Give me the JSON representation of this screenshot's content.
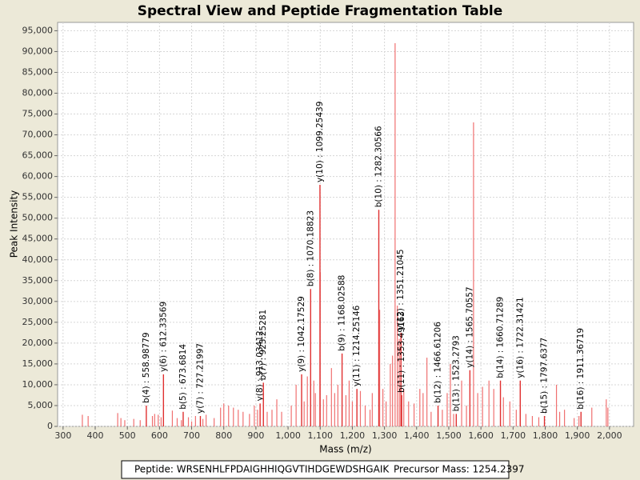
{
  "chart_data": {
    "type": "spectrum",
    "title": "Spectral View and Peptide Fragmentation Table",
    "x_label": "Mass (m/z)",
    "y_label": "Peak Intensity",
    "xlim": [
      283,
      2075
    ],
    "ylim": [
      0,
      97000
    ],
    "xticks": [
      300,
      400,
      500,
      600,
      700,
      800,
      900,
      {
        "value": 1000,
        "label": "1,000"
      },
      {
        "value": 1100,
        "label": "1,100"
      },
      {
        "value": 1200,
        "label": "1,200"
      },
      {
        "value": 1300,
        "label": "1,300"
      },
      {
        "value": 1400,
        "label": "1,400"
      },
      {
        "value": 1500,
        "label": "1,500"
      },
      {
        "value": 1600,
        "label": "1,600"
      },
      {
        "value": 1700,
        "label": "1,700"
      },
      {
        "value": 1800,
        "label": "1,800"
      },
      {
        "value": 1900,
        "label": "1,900"
      },
      {
        "value": 2000,
        "label": "2,000"
      }
    ],
    "yticks": [
      0,
      {
        "value": 5000,
        "label": "5,000"
      },
      {
        "value": 10000,
        "label": "10,000"
      },
      {
        "value": 15000,
        "label": "15,000"
      },
      {
        "value": 20000,
        "label": "20,000"
      },
      {
        "value": 25000,
        "label": "25,000"
      },
      {
        "value": 30000,
        "label": "30,000"
      },
      {
        "value": 35000,
        "label": "35,000"
      },
      {
        "value": 40000,
        "label": "40,000"
      },
      {
        "value": 45000,
        "label": "45,000"
      },
      {
        "value": 50000,
        "label": "50,000"
      },
      {
        "value": 55000,
        "label": "55,000"
      },
      {
        "value": 60000,
        "label": "60,000"
      },
      {
        "value": 65000,
        "label": "65,000"
      },
      {
        "value": 70000,
        "label": "70,000"
      },
      {
        "value": 75000,
        "label": "75,000"
      },
      {
        "value": 80000,
        "label": "80,000"
      },
      {
        "value": 85000,
        "label": "85,000"
      },
      {
        "value": 90000,
        "label": "90,000"
      },
      {
        "value": 95000,
        "label": "95,000"
      }
    ],
    "grid": true,
    "color": "#f07070",
    "annotation_color": "#e03030",
    "x": [
      360,
      378,
      470,
      480,
      492,
      520,
      540,
      578,
      585,
      596,
      605,
      640,
      655,
      668,
      690,
      700,
      712,
      735,
      745,
      770,
      790,
      800,
      815,
      830,
      845,
      860,
      880,
      895,
      905,
      935,
      950,
      965,
      980,
      1010,
      1025,
      1050,
      1060,
      1080,
      1085,
      1100,
      1110,
      1120,
      1135,
      1145,
      1155,
      1180,
      1190,
      1200,
      1225,
      1240,
      1255,
      1262,
      1285,
      1295,
      1305,
      1318,
      1325,
      1333,
      1340,
      1346,
      1360,
      1375,
      1392,
      1410,
      1420,
      1432,
      1445,
      1480,
      1495,
      1505,
      1515,
      1540,
      1555,
      1577,
      1590,
      1605,
      1625,
      1640,
      1670,
      1690,
      1710,
      1740,
      1760,
      1780,
      1835,
      1845,
      1860,
      1890,
      1905,
      1945,
      1990,
      1995
    ],
    "values": [
      2800,
      2500,
      3200,
      2000,
      1500,
      1800,
      1500,
      2500,
      3000,
      2800,
      2200,
      3800,
      2000,
      1500,
      2200,
      1200,
      2500,
      1800,
      2800,
      2000,
      4500,
      5500,
      5000,
      4500,
      4000,
      3500,
      3000,
      5000,
      4000,
      3500,
      4000,
      6500,
      3500,
      5000,
      10000,
      6000,
      12000,
      11000,
      8000,
      37000,
      6500,
      7500,
      14000,
      8000,
      10000,
      7500,
      11000,
      6000,
      8500,
      5000,
      4000,
      8000,
      28000,
      9000,
      6000,
      15000,
      17000,
      92000,
      29000,
      21000,
      9000,
      6000,
      5500,
      9000,
      8000,
      16500,
      3500,
      4000,
      8000,
      15000,
      3000,
      11000,
      5000,
      73000,
      8000,
      9500,
      11000,
      9000,
      7000,
      6000,
      4000,
      3000,
      2500,
      2200,
      10000,
      3500,
      4000,
      2000,
      2500,
      4500,
      6500,
      4500
    ],
    "annotations": [
      {
        "label": "b(4) : 558.98779",
        "x": 558.98779,
        "y": 5000
      },
      {
        "label": "y(6) : 612.33569",
        "x": 612.33569,
        "y": 12500
      },
      {
        "label": "b(5) : 673.6814",
        "x": 673.6814,
        "y": 3500
      },
      {
        "label": "y(7) : 727.21997",
        "x": 727.21997,
        "y": 2500
      },
      {
        "label": "y(8) : 913.03412",
        "x": 913.03412,
        "y": 5500
      },
      {
        "label": "b(7) : 923.25281",
        "x": 923.25281,
        "y": 10500
      },
      {
        "label": "y(9) : 1042.17529",
        "x": 1042.17529,
        "y": 12500
      },
      {
        "label": "b(8) : 1070.18823",
        "x": 1070.18823,
        "y": 33000
      },
      {
        "label": "y(10) : 1099.25439",
        "x": 1099.25439,
        "y": 58000
      },
      {
        "label": "b(9) : 1168.02588",
        "x": 1168.02588,
        "y": 17500
      },
      {
        "label": "y(11) : 1214.25146",
        "x": 1214.25146,
        "y": 9000
      },
      {
        "label": "b(10) : 1282.30566",
        "x": 1282.30566,
        "y": 52000
      },
      {
        "label": "y(12) : 1351.21045",
        "x": 1351.21045,
        "y": 22500
      },
      {
        "label": "b(11) : 1353.49163",
        "x": 1353.49163,
        "y": 7500
      },
      {
        "label": "b(12) : 1466.61206",
        "x": 1466.61206,
        "y": 5000
      },
      {
        "label": "b(13) : 1523.2793",
        "x": 1523.2793,
        "y": 3000
      },
      {
        "label": "y(14) : 1565.70557",
        "x": 1565.70557,
        "y": 13500
      },
      {
        "label": "b(14) : 1660.71289",
        "x": 1660.71289,
        "y": 11000
      },
      {
        "label": "y(16) : 1722.31421",
        "x": 1722.31421,
        "y": 11000
      },
      {
        "label": "b(15) : 1797.6377",
        "x": 1797.6377,
        "y": 2500
      },
      {
        "label": "b(16) : 1911.36719",
        "x": 1911.36719,
        "y": 3500
      }
    ]
  },
  "footer": {
    "peptide": "Peptide: WRSENHLFPDAIGHHIQGVTIHDGEWDSHGAIK",
    "precursor_mass": "Precursor Mass: 1254.2397"
  }
}
